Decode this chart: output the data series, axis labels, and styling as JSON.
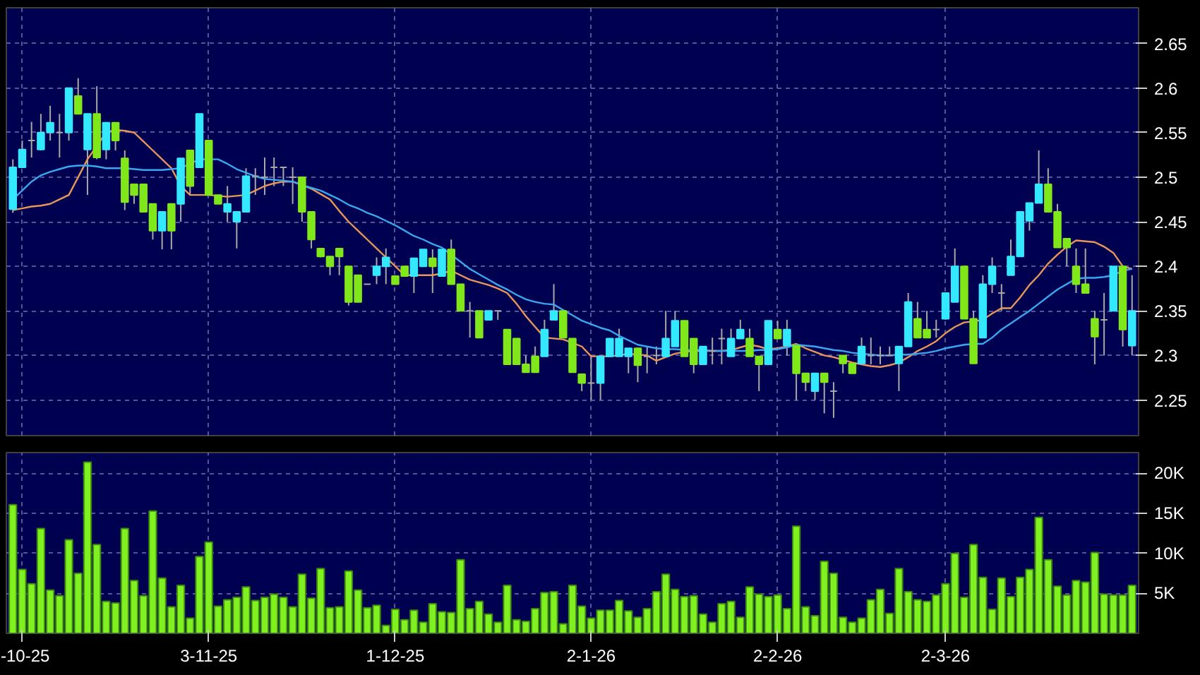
{
  "chart_data": [
    {
      "type": "candlestick",
      "categories": [
        null,
        null,
        null,
        null,
        null,
        null,
        null,
        null,
        null,
        null,
        null,
        null,
        null,
        null,
        null,
        null,
        null,
        null,
        null,
        null,
        null,
        null,
        null,
        null,
        null,
        null,
        null,
        null,
        null,
        null,
        null,
        null,
        null,
        null,
        null,
        null,
        null,
        null,
        null,
        null,
        null,
        null,
        null,
        null,
        null,
        null,
        null,
        null,
        null,
        null,
        null,
        null,
        null,
        null,
        null,
        null,
        null,
        null,
        null,
        null,
        null,
        null,
        null,
        null,
        null,
        null,
        null,
        null,
        null,
        null,
        null,
        null,
        null,
        null,
        null,
        null,
        null,
        null,
        null,
        null,
        null,
        null,
        null,
        null,
        null,
        null,
        null,
        null,
        null,
        null,
        null,
        null,
        null,
        null,
        null,
        null,
        null,
        null,
        null,
        null,
        null,
        null,
        null,
        null,
        null,
        null,
        null,
        null,
        null,
        null,
        null,
        null,
        null,
        null,
        null,
        null,
        null,
        null,
        null,
        null,
        null
      ],
      "ohlc": [
        [
          2.464,
          2.52,
          2.46,
          2.511
        ],
        [
          2.511,
          2.541,
          2.511,
          2.531
        ],
        [
          2.541,
          2.562,
          2.522,
          2.541
        ],
        [
          2.531,
          2.571,
          2.53,
          2.55
        ],
        [
          2.55,
          2.58,
          2.541,
          2.561
        ],
        [
          2.55,
          2.571,
          2.522,
          2.55
        ],
        [
          2.55,
          2.6,
          2.541,
          2.6
        ],
        [
          2.591,
          2.611,
          2.571,
          2.571
        ],
        [
          2.531,
          2.571,
          2.48,
          2.571
        ],
        [
          2.571,
          2.602,
          2.52,
          2.522
        ],
        [
          2.531,
          2.561,
          2.52,
          2.561
        ],
        [
          2.561,
          2.561,
          2.53,
          2.541
        ],
        [
          2.521,
          2.53,
          2.463,
          2.472
        ],
        [
          2.492,
          2.492,
          2.47,
          2.48
        ],
        [
          2.492,
          2.492,
          2.461,
          2.461
        ],
        [
          2.47,
          2.47,
          2.43,
          2.44
        ],
        [
          2.44,
          2.461,
          2.419,
          2.461
        ],
        [
          2.47,
          2.47,
          2.419,
          2.44
        ],
        [
          2.47,
          2.521,
          2.45,
          2.521
        ],
        [
          2.53,
          2.53,
          2.48,
          2.49
        ],
        [
          2.511,
          2.571,
          2.511,
          2.571
        ],
        [
          2.541,
          2.541,
          2.48,
          2.48
        ],
        [
          2.48,
          2.48,
          2.47,
          2.47
        ],
        [
          2.461,
          2.49,
          2.45,
          2.47
        ],
        [
          2.45,
          2.461,
          2.42,
          2.461
        ],
        [
          2.461,
          2.51,
          2.461,
          2.501
        ],
        [
          2.501,
          2.51,
          2.48,
          2.501
        ],
        [
          2.5,
          2.522,
          2.48,
          2.5
        ],
        [
          2.511,
          2.522,
          2.49,
          2.511
        ],
        [
          2.511,
          2.511,
          2.49,
          2.511
        ],
        [
          2.5,
          2.511,
          2.47,
          2.5
        ],
        [
          2.5,
          2.5,
          2.45,
          2.461
        ],
        [
          2.461,
          2.461,
          2.42,
          2.43
        ],
        [
          2.42,
          2.42,
          2.41,
          2.411
        ],
        [
          2.411,
          2.411,
          2.39,
          2.4
        ],
        [
          2.42,
          2.42,
          2.39,
          2.411
        ],
        [
          2.4,
          2.4,
          2.356,
          2.36
        ],
        [
          2.39,
          2.39,
          2.36,
          2.36
        ],
        [
          2.38,
          2.38,
          2.38,
          2.38
        ],
        [
          2.39,
          2.41,
          2.38,
          2.4
        ],
        [
          2.4,
          2.42,
          2.38,
          2.41
        ],
        [
          2.389,
          2.389,
          2.38,
          2.38
        ],
        [
          2.4,
          2.4,
          2.389,
          2.389
        ],
        [
          2.389,
          2.409,
          2.37,
          2.409
        ],
        [
          2.4,
          2.419,
          2.4,
          2.419
        ],
        [
          2.409,
          2.419,
          2.37,
          2.4
        ],
        [
          2.389,
          2.419,
          2.389,
          2.419
        ],
        [
          2.419,
          2.43,
          2.38,
          2.38
        ],
        [
          2.38,
          2.38,
          2.35,
          2.35
        ],
        [
          2.35,
          2.36,
          2.32,
          2.35
        ],
        [
          2.35,
          2.35,
          2.32,
          2.32
        ],
        [
          2.34,
          2.35,
          2.34,
          2.35
        ],
        [
          2.35,
          2.35,
          2.34,
          2.35
        ],
        [
          2.329,
          2.329,
          2.29,
          2.29
        ],
        [
          2.319,
          2.319,
          2.29,
          2.29
        ],
        [
          2.29,
          2.3,
          2.281,
          2.281
        ],
        [
          2.299,
          2.31,
          2.281,
          2.281
        ],
        [
          2.299,
          2.34,
          2.299,
          2.329
        ],
        [
          2.34,
          2.38,
          2.34,
          2.35
        ],
        [
          2.35,
          2.35,
          2.32,
          2.32
        ],
        [
          2.319,
          2.319,
          2.281,
          2.281
        ],
        [
          2.279,
          2.279,
          2.26,
          2.269
        ],
        [
          2.269,
          2.299,
          2.25,
          2.269
        ],
        [
          2.269,
          2.299,
          2.25,
          2.299
        ],
        [
          2.299,
          2.319,
          2.299,
          2.319
        ],
        [
          2.299,
          2.33,
          2.299,
          2.319
        ],
        [
          2.299,
          2.308,
          2.28,
          2.308
        ],
        [
          2.308,
          2.308,
          2.27,
          2.289
        ],
        [
          2.299,
          2.31,
          2.28,
          2.299
        ],
        [
          2.3,
          2.31,
          2.29,
          2.3
        ],
        [
          2.299,
          2.35,
          2.299,
          2.319
        ],
        [
          2.31,
          2.35,
          2.31,
          2.339
        ],
        [
          2.339,
          2.339,
          2.299,
          2.299
        ],
        [
          2.319,
          2.319,
          2.28,
          2.29
        ],
        [
          2.29,
          2.31,
          2.29,
          2.31
        ],
        [
          2.305,
          2.32,
          2.29,
          2.305
        ],
        [
          2.319,
          2.33,
          2.29,
          2.319
        ],
        [
          2.299,
          2.33,
          2.299,
          2.319
        ],
        [
          2.319,
          2.34,
          2.319,
          2.329
        ],
        [
          2.319,
          2.33,
          2.299,
          2.299
        ],
        [
          2.299,
          2.299,
          2.26,
          2.29
        ],
        [
          2.29,
          2.339,
          2.29,
          2.339
        ],
        [
          2.329,
          2.339,
          2.319,
          2.319
        ],
        [
          2.311,
          2.34,
          2.3,
          2.329
        ],
        [
          2.311,
          2.311,
          2.25,
          2.28
        ],
        [
          2.28,
          2.28,
          2.26,
          2.27
        ],
        [
          2.26,
          2.28,
          2.25,
          2.28
        ],
        [
          2.28,
          2.28,
          2.235,
          2.27
        ],
        [
          2.26,
          2.27,
          2.23,
          2.26
        ],
        [
          2.3,
          2.3,
          2.28,
          2.291
        ],
        [
          2.291,
          2.291,
          2.28,
          2.28
        ],
        [
          2.291,
          2.32,
          2.291,
          2.31
        ],
        [
          2.3,
          2.32,
          2.29,
          2.3
        ],
        [
          2.3,
          2.31,
          2.29,
          2.3
        ],
        [
          2.3,
          2.31,
          2.3,
          2.3
        ],
        [
          2.291,
          2.31,
          2.26,
          2.31
        ],
        [
          2.31,
          2.37,
          2.31,
          2.36
        ],
        [
          2.341,
          2.36,
          2.32,
          2.32
        ],
        [
          2.329,
          2.35,
          2.32,
          2.32
        ],
        [
          2.329,
          2.34,
          2.32,
          2.329
        ],
        [
          2.341,
          2.37,
          2.34,
          2.37
        ],
        [
          2.36,
          2.42,
          2.36,
          2.4
        ],
        [
          2.4,
          2.4,
          2.341,
          2.341
        ],
        [
          2.341,
          2.35,
          2.291,
          2.291
        ],
        [
          2.32,
          2.39,
          2.32,
          2.38
        ],
        [
          2.38,
          2.41,
          2.37,
          2.4
        ],
        [
          2.37,
          2.38,
          2.35,
          2.37
        ],
        [
          2.39,
          2.43,
          2.39,
          2.411
        ],
        [
          2.411,
          2.461,
          2.411,
          2.461
        ],
        [
          2.451,
          2.471,
          2.44,
          2.471
        ],
        [
          2.471,
          2.53,
          2.471,
          2.492
        ],
        [
          2.492,
          2.51,
          2.461,
          2.461
        ],
        [
          2.461,
          2.47,
          2.421,
          2.421
        ],
        [
          2.431,
          2.431,
          2.4,
          2.421
        ],
        [
          2.4,
          2.42,
          2.37,
          2.38
        ],
        [
          2.38,
          2.42,
          2.37,
          2.37
        ],
        [
          2.341,
          2.35,
          2.29,
          2.321
        ],
        [
          2.34,
          2.37,
          2.3,
          2.34
        ],
        [
          2.35,
          2.4,
          2.35,
          2.4
        ],
        [
          2.4,
          2.4,
          2.31,
          2.329
        ],
        [
          2.311,
          2.39,
          2.3,
          2.35
        ]
      ],
      "colors": [
        "#33e8ff",
        "#33e8ff",
        "#a8a8a8",
        "#33e8ff",
        "#33e8ff",
        "#a8a8a8",
        "#33e8ff",
        "#80e81a",
        "#33e8ff",
        "#80e81a",
        "#33e8ff",
        "#80e81a",
        "#80e81a",
        "#80e81a",
        "#80e81a",
        "#80e81a",
        "#33e8ff",
        "#80e81a",
        "#33e8ff",
        "#80e81a",
        "#33e8ff",
        "#80e81a",
        "#80e81a",
        "#33e8ff",
        "#33e8ff",
        "#33e8ff",
        "#a8a8a8",
        "#a8a8a8",
        "#a8a8a8",
        "#a8a8a8",
        "#a8a8a8",
        "#80e81a",
        "#80e81a",
        "#80e81a",
        "#80e81a",
        "#80e81a",
        "#80e81a",
        "#80e81a",
        "#a8a8a8",
        "#33e8ff",
        "#33e8ff",
        "#80e81a",
        "#80e81a",
        "#33e8ff",
        "#33e8ff",
        "#80e81a",
        "#33e8ff",
        "#80e81a",
        "#80e81a",
        "#a8a8a8",
        "#80e81a",
        "#33e8ff",
        "#a8a8a8",
        "#80e81a",
        "#80e81a",
        "#80e81a",
        "#80e81a",
        "#33e8ff",
        "#33e8ff",
        "#80e81a",
        "#80e81a",
        "#80e81a",
        "#a8a8a8",
        "#33e8ff",
        "#33e8ff",
        "#33e8ff",
        "#33e8ff",
        "#80e81a",
        "#a8a8a8",
        "#a8a8a8",
        "#33e8ff",
        "#33e8ff",
        "#80e81a",
        "#80e81a",
        "#33e8ff",
        "#a8a8a8",
        "#a8a8a8",
        "#33e8ff",
        "#33e8ff",
        "#80e81a",
        "#80e81a",
        "#33e8ff",
        "#80e81a",
        "#33e8ff",
        "#80e81a",
        "#80e81a",
        "#33e8ff",
        "#80e81a",
        "#a8a8a8",
        "#80e81a",
        "#80e81a",
        "#33e8ff",
        "#a8a8a8",
        "#a8a8a8",
        "#a8a8a8",
        "#33e8ff",
        "#33e8ff",
        "#80e81a",
        "#80e81a",
        "#a8a8a8",
        "#33e8ff",
        "#33e8ff",
        "#80e81a",
        "#80e81a",
        "#33e8ff",
        "#33e8ff",
        "#a8a8a8",
        "#33e8ff",
        "#33e8ff",
        "#33e8ff",
        "#33e8ff",
        "#80e81a",
        "#80e81a",
        "#80e81a",
        "#80e81a",
        "#80e81a",
        "#80e81a",
        "#a8a8a8",
        "#33e8ff",
        "#80e81a",
        "#33e8ff"
      ],
      "series": [
        {
          "type": "line",
          "color": "#e8965a",
          "values": [
            2.463,
            2.465,
            2.467,
            2.468,
            2.47,
            2.475,
            2.48,
            2.5,
            2.52,
            2.535,
            2.55,
            2.553,
            2.552,
            2.55,
            2.54,
            2.53,
            2.52,
            2.51,
            2.49,
            2.48,
            2.48,
            2.48,
            2.479,
            2.478,
            2.479,
            2.48,
            2.485,
            2.49,
            2.493,
            2.495,
            2.495,
            2.491,
            2.487,
            2.481,
            2.475,
            2.462,
            2.45,
            2.44,
            2.43,
            2.42,
            2.41,
            2.4,
            2.39,
            2.39,
            2.39,
            2.39,
            2.392,
            2.395,
            2.39,
            2.385,
            2.382,
            2.379,
            2.375,
            2.37,
            2.358,
            2.344,
            2.332,
            2.32,
            2.319,
            2.318,
            2.314,
            2.31,
            2.299,
            2.299,
            2.299,
            2.3,
            2.302,
            2.301,
            2.3,
            2.294,
            2.298,
            2.302,
            2.304,
            2.305,
            2.305,
            2.305,
            2.305,
            2.306,
            2.309,
            2.312,
            2.31,
            2.307,
            2.308,
            2.31,
            2.313,
            2.308,
            2.304,
            2.3,
            2.298,
            2.295,
            2.292,
            2.29,
            2.288,
            2.287,
            2.289,
            2.292,
            2.298,
            2.305,
            2.31,
            2.316,
            2.325,
            2.332,
            2.337,
            2.338,
            2.34,
            2.347,
            2.353,
            2.353,
            2.365,
            2.379,
            2.39,
            2.403,
            2.413,
            2.422,
            2.429,
            2.428,
            2.427,
            2.422,
            2.415,
            2.4,
            2.397
          ]
        },
        {
          "type": "line",
          "color": "#3aa6ee",
          "values": [
            2.475,
            2.485,
            2.495,
            2.502,
            2.506,
            2.509,
            2.512,
            2.513,
            2.513,
            2.512,
            2.51,
            2.51,
            2.51,
            2.509,
            2.508,
            2.508,
            2.508,
            2.509,
            2.51,
            2.515,
            2.52,
            2.52,
            2.52,
            2.515,
            2.509,
            2.505,
            2.501,
            2.498,
            2.497,
            2.496,
            2.495,
            2.491,
            2.488,
            2.485,
            2.48,
            2.475,
            2.469,
            2.465,
            2.46,
            2.456,
            2.451,
            2.446,
            2.44,
            2.434,
            2.43,
            2.425,
            2.421,
            2.413,
            2.405,
            2.397,
            2.391,
            2.385,
            2.379,
            2.374,
            2.368,
            2.363,
            2.36,
            2.358,
            2.357,
            2.351,
            2.345,
            2.339,
            2.335,
            2.331,
            2.328,
            2.322,
            2.317,
            2.312,
            2.31,
            2.308,
            2.307,
            2.307,
            2.306,
            2.306,
            2.306,
            2.305,
            2.305,
            2.305,
            2.305,
            2.305,
            2.306,
            2.306,
            2.307,
            2.309,
            2.312,
            2.311,
            2.31,
            2.308,
            2.306,
            2.305,
            2.303,
            2.302,
            2.301,
            2.3,
            2.3,
            2.301,
            2.301,
            2.302,
            2.303,
            2.305,
            2.308,
            2.31,
            2.312,
            2.313,
            2.313,
            2.32,
            2.329,
            2.336,
            2.343,
            2.35,
            2.358,
            2.366,
            2.374,
            2.38,
            2.386,
            2.387,
            2.387,
            2.388,
            2.39,
            2.395,
            2.397
          ]
        }
      ],
      "ylim": [
        2.21,
        2.69
      ],
      "yticks": [
        2.25,
        2.3,
        2.35,
        2.4,
        2.45,
        2.5,
        2.55,
        2.6,
        2.65
      ],
      "grid": true,
      "tick_labels": "y"
    },
    {
      "type": "bar",
      "categories": [
        null,
        "-10-25",
        null,
        null,
        null,
        null,
        null,
        null,
        null,
        null,
        null,
        null,
        null,
        null,
        null,
        null,
        null,
        null,
        null,
        null,
        null,
        "3-11-25",
        null,
        null,
        null,
        null,
        null,
        null,
        null,
        null,
        null,
        null,
        null,
        null,
        null,
        null,
        null,
        null,
        null,
        null,
        null,
        "1-12-25",
        null,
        null,
        null,
        null,
        null,
        null,
        null,
        null,
        null,
        null,
        null,
        null,
        null,
        null,
        null,
        null,
        null,
        null,
        null,
        null,
        "2-1-26",
        null,
        null,
        null,
        null,
        null,
        null,
        null,
        null,
        null,
        null,
        null,
        null,
        null,
        null,
        null,
        null,
        null,
        null,
        null,
        "2-2-26",
        null,
        null,
        null,
        null,
        null,
        null,
        null,
        null,
        null,
        null,
        null,
        null,
        null,
        null,
        null,
        null,
        null,
        "2-3-26",
        null,
        null,
        null,
        null,
        null,
        null,
        null,
        null,
        null,
        null,
        null,
        null,
        null,
        null,
        null,
        null,
        null,
        null,
        null,
        null
      ],
      "values": [
        16100,
        8000,
        6200,
        13100,
        5400,
        4700,
        11700,
        7500,
        21400,
        11100,
        4000,
        3800,
        13100,
        6600,
        4700,
        15300,
        6900,
        3300,
        6000,
        1900,
        9600,
        11400,
        3400,
        4200,
        4500,
        5800,
        4100,
        4500,
        4900,
        4500,
        3300,
        7400,
        4400,
        8100,
        3200,
        3300,
        7800,
        5400,
        3200,
        3500,
        1000,
        3000,
        1700,
        2900,
        1400,
        3700,
        2700,
        2600,
        9200,
        3100,
        4000,
        2400,
        1400,
        6000,
        1700,
        1500,
        3100,
        5100,
        5200,
        1200,
        6000,
        3400,
        1900,
        2900,
        2900,
        4100,
        2800,
        2000,
        3100,
        5200,
        7400,
        5500,
        4600,
        4700,
        2400,
        1400,
        3700,
        4000,
        2000,
        5800,
        4900,
        4600,
        4800,
        3100,
        13400,
        3300,
        2200,
        9000,
        7500,
        2000,
        1400,
        1900,
        4200,
        5500,
        2500,
        8100,
        5200,
        4200,
        4000,
        4800,
        6200,
        10000,
        4500,
        11100,
        7000,
        3000,
        6900,
        4600,
        7000,
        8000,
        14500,
        9200,
        5900,
        4800,
        6600,
        6400,
        10100,
        4900,
        4800,
        4800,
        6000
      ],
      "color": "#80f020",
      "ylim": [
        0,
        22600
      ],
      "yticks": [
        {
          "value": 5000,
          "label": "5K"
        },
        {
          "value": 10000,
          "label": "10K"
        },
        {
          "value": 15000,
          "label": "15K"
        },
        {
          "value": 20000,
          "label": "20K"
        }
      ],
      "grid": true
    }
  ]
}
